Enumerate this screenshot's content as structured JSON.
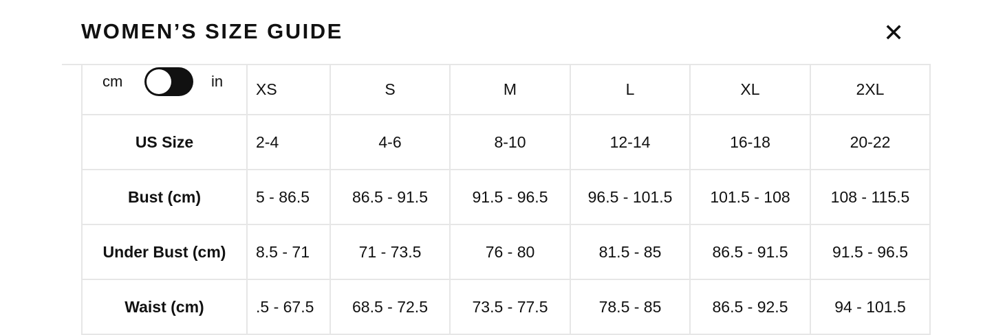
{
  "header": {
    "title": "WOMEN’S SIZE GUIDE",
    "close": "✕"
  },
  "toggle": {
    "left": "cm",
    "right": "in"
  },
  "table": {
    "columns": [
      "XS",
      "S",
      "M",
      "L",
      "XL",
      "2XL"
    ],
    "rows": [
      [
        "US Size",
        "2-4",
        "4-6",
        "8-10",
        "12-14",
        "16-18",
        "20-22"
      ],
      [
        "Bust (cm)",
        "5 - 86.5",
        "86.5 - 91.5",
        "91.5 - 96.5",
        "96.5 - 101.5",
        "101.5 - 108",
        "108 - 115.5"
      ],
      [
        "Under Bust (cm)",
        "8.5 - 71",
        "71 - 73.5",
        "76 - 80",
        "81.5 - 85",
        "86.5 - 91.5",
        "91.5 - 96.5"
      ],
      [
        "Waist (cm)",
        ".5 - 67.5",
        "68.5 - 72.5",
        "73.5 - 77.5",
        "78.5 - 85",
        "86.5 - 92.5",
        "94 - 101.5"
      ]
    ]
  }
}
